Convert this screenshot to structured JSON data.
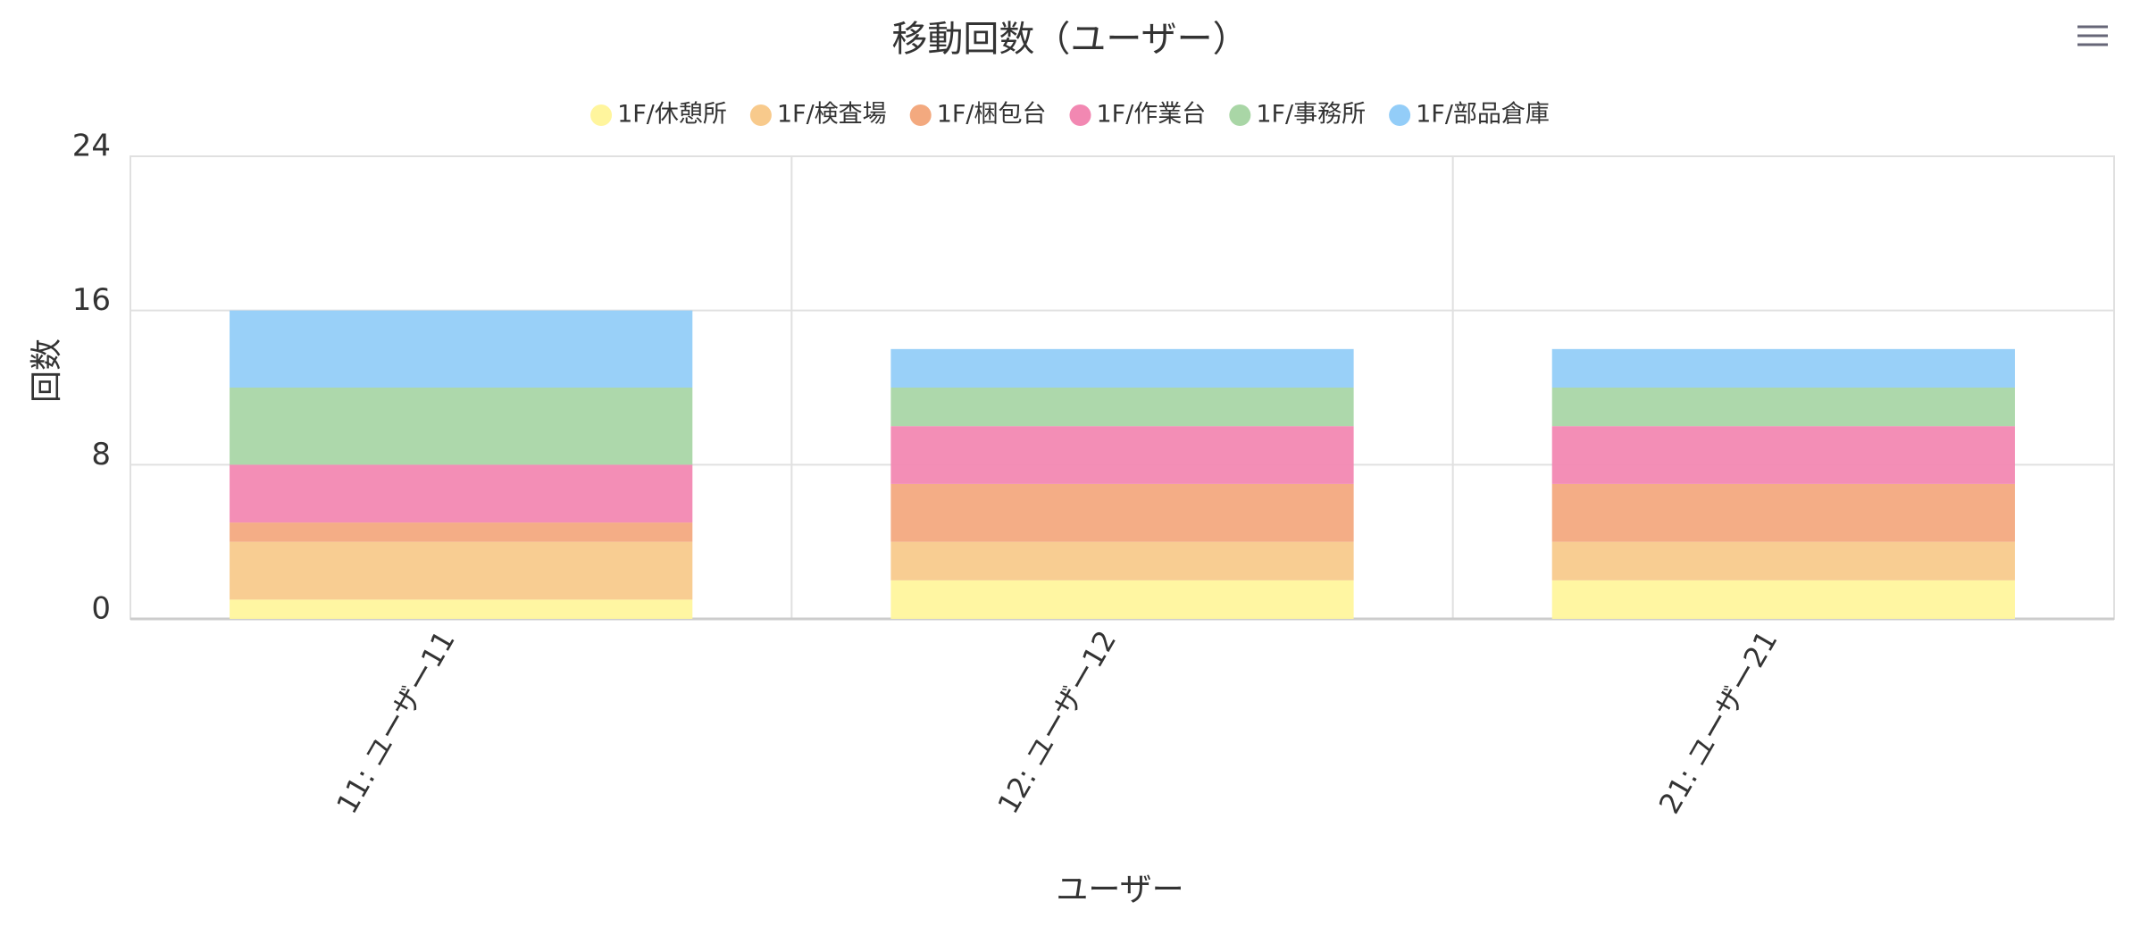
{
  "chart_data": {
    "type": "stacked-bar",
    "title": "移動回数（ユーザー）",
    "x_label": "ユーザー",
    "y_label": "回数",
    "categories": [
      "11: ユーザー11",
      "12: ユーザー12",
      "21: ユーザー21"
    ],
    "series": [
      {
        "name": "1F/休憩所",
        "color": "#fff59d",
        "values": [
          1,
          2,
          2
        ]
      },
      {
        "name": "1F/検査場",
        "color": "#f8ca8c",
        "values": [
          3,
          2,
          2
        ]
      },
      {
        "name": "1F/梱包台",
        "color": "#f3a97f",
        "values": [
          1,
          3,
          3
        ]
      },
      {
        "name": "1F/作業台",
        "color": "#f288b2",
        "values": [
          3,
          3,
          3
        ]
      },
      {
        "name": "1F/事務所",
        "color": "#a9d6a6",
        "values": [
          4,
          2,
          2
        ]
      },
      {
        "name": "1F/部品倉庫",
        "color": "#93cdf8",
        "values": [
          4,
          2,
          2
        ]
      }
    ],
    "ylim": [
      0,
      24
    ],
    "yticks": [
      0,
      8,
      16,
      24
    ],
    "grid": true,
    "legend": "top"
  }
}
